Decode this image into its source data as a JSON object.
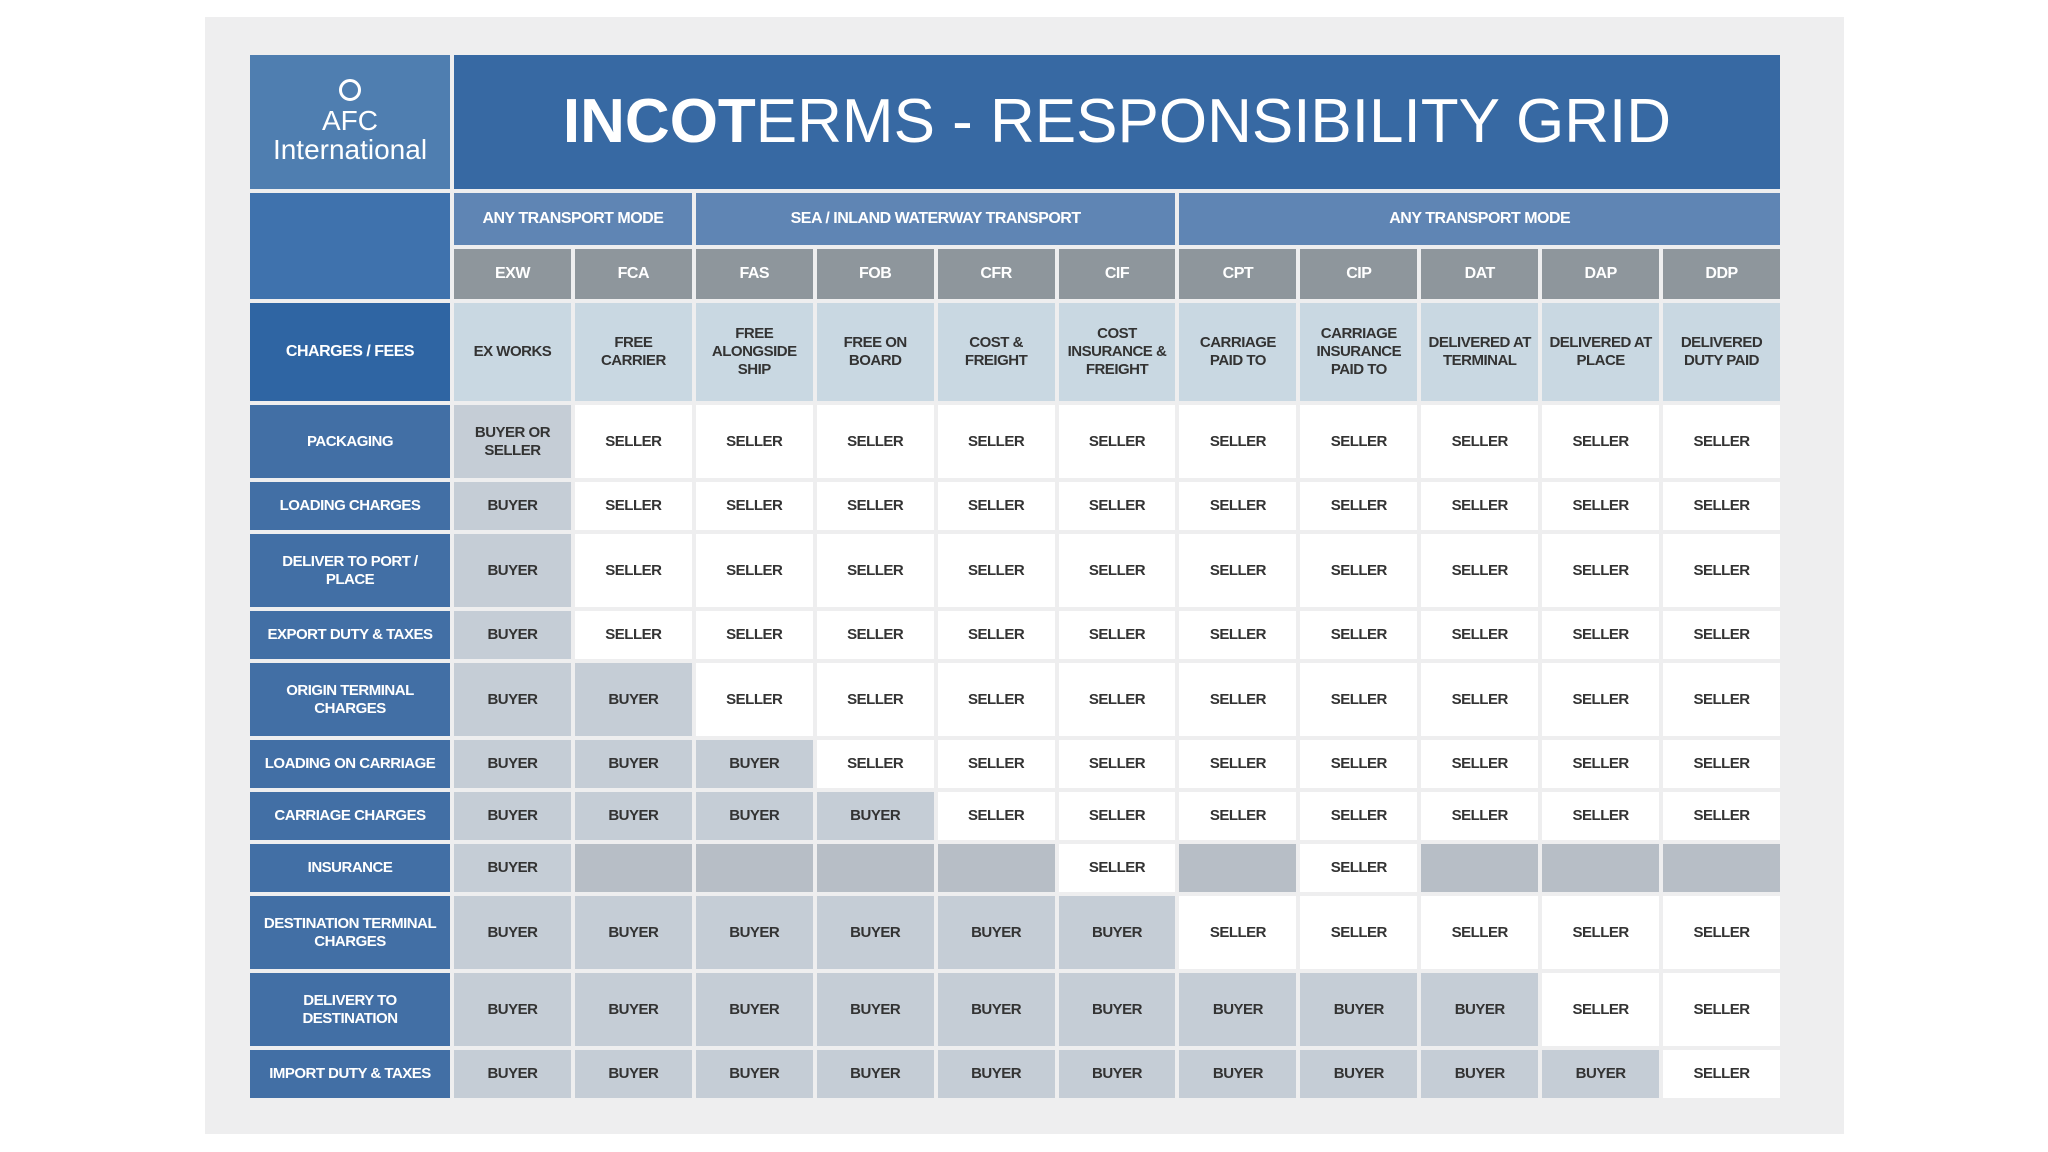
{
  "logo": {
    "line1": "AFC",
    "line2": "International"
  },
  "title": {
    "bold_part": "INCOT",
    "rest": "ERMS - RESPONSIBILITY GRID"
  },
  "modes": [
    {
      "label": "ANY TRANSPORT MODE",
      "span": 2
    },
    {
      "label": "SEA / INLAND WATERWAY TRANSPORT",
      "span": 4
    },
    {
      "label": "ANY TRANSPORT MODE",
      "span": 5
    }
  ],
  "codes": [
    "EXW",
    "FCA",
    "FAS",
    "FOB",
    "CFR",
    "CIF",
    "CPT",
    "CIP",
    "DAT",
    "DAP",
    "DDP"
  ],
  "charges_header": "CHARGES / FEES",
  "full_names": [
    "EX WORKS",
    "FREE CARRIER",
    "FREE ALONGSIDE SHIP",
    "FREE ON BOARD",
    "COST & FREIGHT",
    "COST INSURANCE & FREIGHT",
    "CARRIAGE PAID TO",
    "CARRIAGE INSURANCE PAID TO",
    "DELIVERED AT TERMINAL",
    "DELIVERED AT PLACE",
    "DELIVERED DUTY PAID"
  ],
  "rows": [
    {
      "label": "PACKAGING",
      "cells": [
        "BUYER OR SELLER",
        "SELLER",
        "SELLER",
        "SELLER",
        "SELLER",
        "SELLER",
        "SELLER",
        "SELLER",
        "SELLER",
        "SELLER",
        "SELLER"
      ]
    },
    {
      "label": "LOADING CHARGES",
      "cells": [
        "BUYER",
        "SELLER",
        "SELLER",
        "SELLER",
        "SELLER",
        "SELLER",
        "SELLER",
        "SELLER",
        "SELLER",
        "SELLER",
        "SELLER"
      ]
    },
    {
      "label": "DELIVER TO PORT / PLACE",
      "cells": [
        "BUYER",
        "SELLER",
        "SELLER",
        "SELLER",
        "SELLER",
        "SELLER",
        "SELLER",
        "SELLER",
        "SELLER",
        "SELLER",
        "SELLER"
      ]
    },
    {
      "label": "EXPORT DUTY & TAXES",
      "cells": [
        "BUYER",
        "SELLER",
        "SELLER",
        "SELLER",
        "SELLER",
        "SELLER",
        "SELLER",
        "SELLER",
        "SELLER",
        "SELLER",
        "SELLER"
      ]
    },
    {
      "label": "ORIGIN TERMINAL CHARGES",
      "cells": [
        "BUYER",
        "BUYER",
        "SELLER",
        "SELLER",
        "SELLER",
        "SELLER",
        "SELLER",
        "SELLER",
        "SELLER",
        "SELLER",
        "SELLER"
      ]
    },
    {
      "label": "LOADING ON CARRIAGE",
      "cells": [
        "BUYER",
        "BUYER",
        "BUYER",
        "SELLER",
        "SELLER",
        "SELLER",
        "SELLER",
        "SELLER",
        "SELLER",
        "SELLER",
        "SELLER"
      ]
    },
    {
      "label": "CARRIAGE CHARGES",
      "cells": [
        "BUYER",
        "BUYER",
        "BUYER",
        "BUYER",
        "SELLER",
        "SELLER",
        "SELLER",
        "SELLER",
        "SELLER",
        "SELLER",
        "SELLER"
      ]
    },
    {
      "label": "INSURANCE",
      "cells": [
        "BUYER",
        "",
        "",
        "",
        "",
        "SELLER",
        "",
        "SELLER",
        "",
        "",
        ""
      ]
    },
    {
      "label": "DESTINATION TERMINAL CHARGES",
      "cells": [
        "BUYER",
        "BUYER",
        "BUYER",
        "BUYER",
        "BUYER",
        "BUYER",
        "SELLER",
        "SELLER",
        "SELLER",
        "SELLER",
        "SELLER"
      ]
    },
    {
      "label": "DELIVERY TO DESTINATION",
      "cells": [
        "BUYER",
        "BUYER",
        "BUYER",
        "BUYER",
        "BUYER",
        "BUYER",
        "BUYER",
        "BUYER",
        "BUYER",
        "SELLER",
        "SELLER"
      ]
    },
    {
      "label": "IMPORT DUTY & TAXES",
      "cells": [
        "BUYER",
        "BUYER",
        "BUYER",
        "BUYER",
        "BUYER",
        "BUYER",
        "BUYER",
        "BUYER",
        "BUYER",
        "BUYER",
        "SELLER"
      ]
    }
  ]
}
